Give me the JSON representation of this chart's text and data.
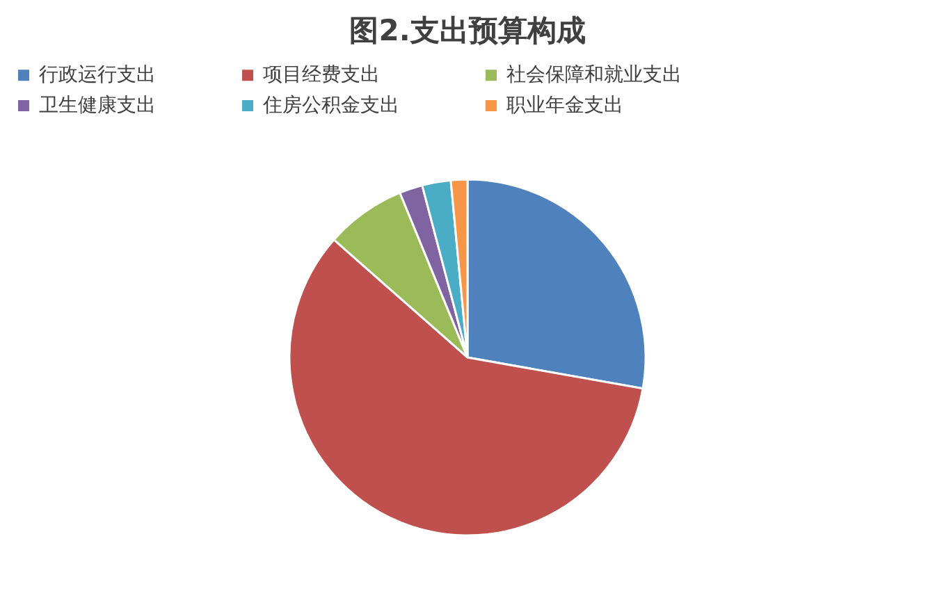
{
  "chart_data": {
    "type": "pie",
    "title": "图2.支出预算构成",
    "categories": [
      "行政运行支出",
      "项目经费支出",
      "社会保障和就业支出",
      "卫生健康支出",
      "住房公积金支出",
      "职业年金支出"
    ],
    "values": [
      27.8,
      58.7,
      7.3,
      2.1,
      2.6,
      1.5
    ],
    "colors": [
      "#4f81bd",
      "#c0504d",
      "#9bbb59",
      "#8064a2",
      "#4bacc6",
      "#f79646"
    ],
    "legend": "top"
  }
}
